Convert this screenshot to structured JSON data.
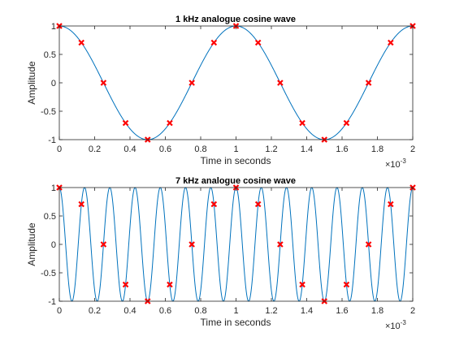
{
  "chart_data": [
    {
      "type": "line",
      "title": "1 kHz analogue cosine wave",
      "xlabel": "Time in seconds",
      "ylabel": "Amplitude",
      "x_exponent_label": "×10",
      "x_exponent": "-3",
      "xlim": [
        0,
        0.002
      ],
      "ylim": [
        -1,
        1
      ],
      "x_ticks": [
        0,
        0.0002,
        0.0004,
        0.0006,
        0.0008,
        0.001,
        0.0012,
        0.0014,
        0.0016,
        0.0018,
        0.002
      ],
      "x_tick_labels": [
        "0",
        "0.2",
        "0.4",
        "0.6",
        "0.8",
        "1",
        "1.2",
        "1.4",
        "1.6",
        "1.8",
        "2"
      ],
      "y_ticks": [
        -1,
        -0.5,
        0,
        0.5,
        1
      ],
      "y_tick_labels": [
        "-1",
        "-0.5",
        "0",
        "0.5",
        "1"
      ],
      "grid": false,
      "series": [
        {
          "kind": "curve",
          "function": "cos(2*pi*f*t)",
          "frequency_hz": 1000,
          "color": "#0072BD"
        },
        {
          "kind": "samples",
          "marker": "x",
          "color": "#FF0000",
          "x": [
            0,
            0.000125,
            0.00025,
            0.000375,
            0.0005,
            0.000625,
            0.00075,
            0.000875,
            0.001,
            0.001125,
            0.00125,
            0.001375,
            0.0015,
            0.001625,
            0.00175,
            0.001875,
            0.002
          ],
          "y": [
            1,
            0.707,
            0,
            -0.707,
            -1,
            -0.707,
            0,
            0.707,
            1,
            0.707,
            0,
            -0.707,
            -1,
            -0.707,
            0,
            0.707,
            1
          ]
        }
      ]
    },
    {
      "type": "line",
      "title": "7 kHz analogue cosine wave",
      "xlabel": "Time in seconds",
      "ylabel": "Amplitude",
      "x_exponent_label": "×10",
      "x_exponent": "-3",
      "xlim": [
        0,
        0.002
      ],
      "ylim": [
        -1,
        1
      ],
      "x_ticks": [
        0,
        0.0002,
        0.0004,
        0.0006,
        0.0008,
        0.001,
        0.0012,
        0.0014,
        0.0016,
        0.0018,
        0.002
      ],
      "x_tick_labels": [
        "0",
        "0.2",
        "0.4",
        "0.6",
        "0.8",
        "1",
        "1.2",
        "1.4",
        "1.6",
        "1.8",
        "2"
      ],
      "y_ticks": [
        -1,
        -0.5,
        0,
        0.5,
        1
      ],
      "y_tick_labels": [
        "-1",
        "-0.5",
        "0",
        "0.5",
        "1"
      ],
      "grid": false,
      "series": [
        {
          "kind": "curve",
          "function": "cos(2*pi*f*t)",
          "frequency_hz": 7000,
          "color": "#0072BD"
        },
        {
          "kind": "samples",
          "marker": "x",
          "color": "#FF0000",
          "x": [
            0,
            0.000125,
            0.00025,
            0.000375,
            0.0005,
            0.000625,
            0.00075,
            0.000875,
            0.001,
            0.001125,
            0.00125,
            0.001375,
            0.0015,
            0.001625,
            0.00175,
            0.001875,
            0.002
          ],
          "y": [
            1,
            0.707,
            0,
            -0.707,
            -1,
            -0.707,
            0,
            0.707,
            1,
            0.707,
            0,
            -0.707,
            -1,
            -0.707,
            0,
            0.707,
            1
          ]
        }
      ]
    }
  ]
}
